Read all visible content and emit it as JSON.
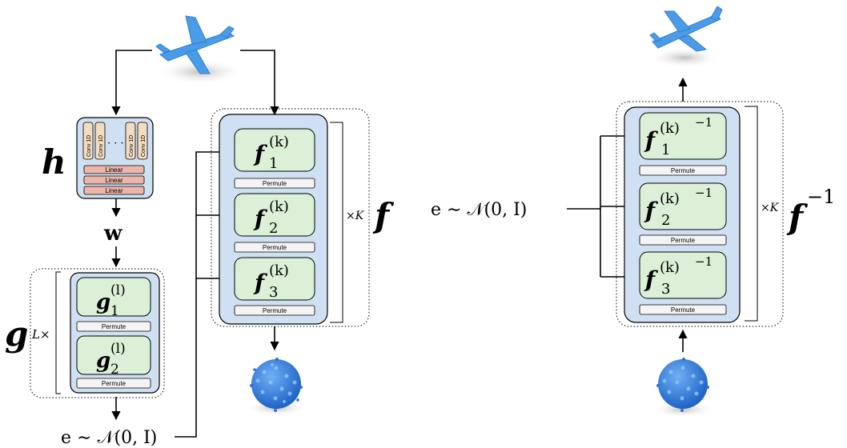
{
  "encoder": {
    "label": "h",
    "conv_layers": [
      "Conv 1D",
      "Conv 1D",
      "Conv 1D",
      "Conv 1D"
    ],
    "ellipsis": "· · ·",
    "linear_layers": [
      "Linear",
      "Linear",
      "Linear"
    ],
    "output_label": "w"
  },
  "hypernet_flow": {
    "label": "g",
    "repeat": "L×",
    "blocks": [
      {
        "name": "g",
        "sup": "(l)",
        "sub": "1"
      },
      {
        "name": "g",
        "sup": "(l)",
        "sub": "2"
      }
    ],
    "permute": "Permute",
    "noise": "e ∼ 𝒩(0, I)"
  },
  "target_flow": {
    "label": "f",
    "repeat": "×K",
    "blocks": [
      {
        "name": "f",
        "sup": "(k)",
        "sub": "1"
      },
      {
        "name": "f",
        "sup": "(k)",
        "sub": "2"
      },
      {
        "name": "f",
        "sup": "(k)",
        "sub": "3"
      }
    ],
    "permute": "Permute"
  },
  "inverse_flow": {
    "label": "f",
    "label_sup": "−1",
    "repeat": "×K",
    "blocks": [
      {
        "name": "f",
        "sup": "(k)",
        "sup2": "−1",
        "sub": "1"
      },
      {
        "name": "f",
        "sup": "(k)",
        "sup2": "−1",
        "sub": "2"
      },
      {
        "name": "f",
        "sup": "(k)",
        "sup2": "−1",
        "sub": "3"
      }
    ],
    "permute": "Permute",
    "noise": "e ∼ 𝒩(0, I)"
  },
  "colors": {
    "panel_blue": "#cfe0f3",
    "block_green": "#dcefd7",
    "linear_pink": "#ecb6ac",
    "conv_tan": "#f3dcc0",
    "point_blue": "#3d86e0"
  }
}
